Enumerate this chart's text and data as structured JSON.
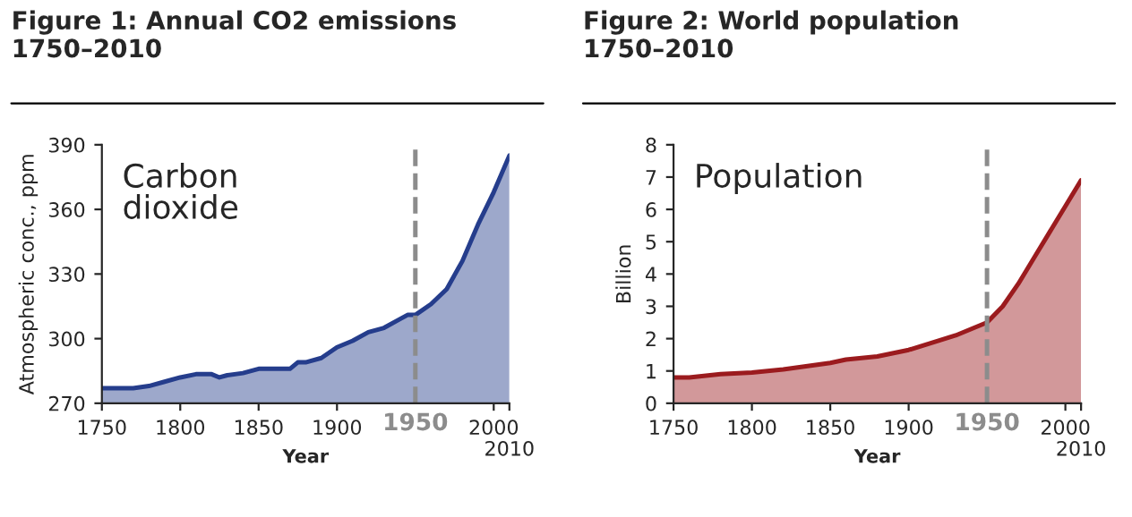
{
  "chart_data": [
    {
      "type": "area",
      "title": "Figure 1: Annual CO2 emissions\n1750–2010",
      "xlabel": "Year",
      "ylabel": "Atmospheric conc., ppm",
      "annotations": [
        "Carbon\ndioxide",
        {
          "text": "2010",
          "x": 2010,
          "y": 270
        }
      ],
      "x": [
        1750,
        1760,
        1770,
        1780,
        1790,
        1800,
        1810,
        1820,
        1825,
        1830,
        1840,
        1850,
        1860,
        1870,
        1875,
        1880,
        1890,
        1900,
        1910,
        1920,
        1930,
        1940,
        1945,
        1950,
        1960,
        1970,
        1980,
        1990,
        2000,
        2010
      ],
      "series": [
        {
          "color": "#253d8c",
          "values": [
            277,
            277,
            277,
            278,
            280,
            282,
            283.5,
            283.5,
            282,
            283,
            284,
            286,
            286,
            286,
            289,
            289,
            291,
            296,
            299,
            303,
            305,
            309,
            311,
            311,
            316,
            323,
            336,
            353,
            368,
            385
          ]
        }
      ],
      "xlim": [
        1750,
        2010
      ],
      "ylim": [
        270,
        390
      ],
      "xticks": [
        1750,
        1800,
        1850,
        1900,
        2000,
        {
          "value": 2010,
          "label": null
        }
      ],
      "yticks": [
        270,
        300,
        330,
        360,
        390
      ],
      "ref_lines": [
        {
          "axis": "x",
          "value": 1950,
          "label": "1950",
          "color": "#8c8c8c",
          "line_style": "dashed"
        }
      ],
      "grid": false,
      "legend": false
    },
    {
      "type": "area",
      "title": "Figure 2: World population\n1750–2010",
      "xlabel": "Year",
      "ylabel": "Billion",
      "annotations": [
        "Population",
        {
          "text": "2010",
          "x": 2010,
          "y": 0
        }
      ],
      "x": [
        1750,
        1760,
        1780,
        1800,
        1820,
        1850,
        1860,
        1880,
        1900,
        1920,
        1930,
        1940,
        1950,
        1960,
        1970,
        1980,
        1990,
        2000,
        2010
      ],
      "series": [
        {
          "color": "#9b1b1e",
          "values": [
            0.8,
            0.8,
            0.9,
            0.95,
            1.05,
            1.25,
            1.35,
            1.45,
            1.65,
            1.95,
            2.1,
            2.3,
            2.5,
            3.0,
            3.7,
            4.5,
            5.3,
            6.1,
            6.9
          ]
        }
      ],
      "xlim": [
        1750,
        2010
      ],
      "ylim": [
        0,
        8
      ],
      "xticks": [
        1750,
        1800,
        1850,
        1900,
        2000,
        {
          "value": 2010,
          "label": null
        }
      ],
      "yticks": [
        0,
        1,
        2,
        3,
        4,
        5,
        6,
        7,
        8
      ],
      "ref_lines": [
        {
          "axis": "x",
          "value": 1950,
          "label": "1950",
          "color": "#8c8c8c",
          "line_style": "dashed"
        }
      ],
      "grid": false,
      "legend": false
    }
  ]
}
